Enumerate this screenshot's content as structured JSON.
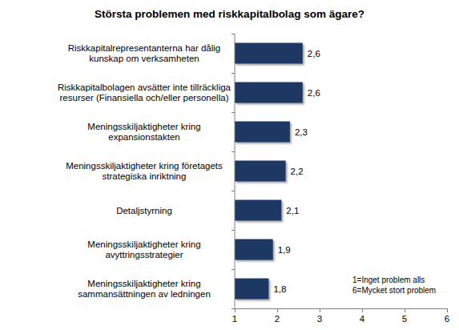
{
  "chart_data": {
    "type": "bar",
    "orientation": "horizontal",
    "title": "Största problemen med riskkapitalbolag som ägare?",
    "categories": [
      "Riskkapitalrepresentanterna har dålig kunskap om verksamheten",
      "Riskkapitalbolagen avsätter inte tillräckliga resurser (Finansiella och/eller personella)",
      "Meningsskiljaktigheter kring expansionstakten",
      "Meningsskiljaktigheter kring företagets strategiska inriktning",
      "Detaljstyrning",
      "Meningsskiljaktigheter kring avyttringsstrategier",
      "Meningsskiljaktigheter kring sammansättningen av ledningen"
    ],
    "values": [
      2.6,
      2.6,
      2.3,
      2.2,
      2.1,
      1.9,
      1.8
    ],
    "value_labels": [
      "2,6",
      "2,6",
      "2,3",
      "2,2",
      "2,1",
      "1,9",
      "1,8"
    ],
    "color": "#1f3864",
    "xlim": [
      1,
      6
    ],
    "xticks": [
      1,
      2,
      3,
      4,
      5,
      6
    ],
    "grid": false,
    "data_labels": true,
    "annotations": [
      "1=Inget problem alls",
      "6=Mycket stort problem"
    ]
  }
}
